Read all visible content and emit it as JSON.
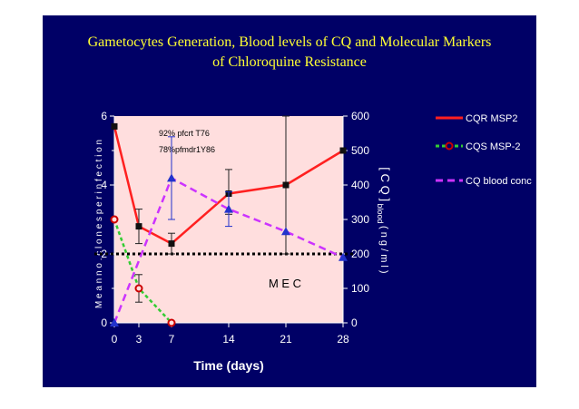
{
  "chart_data": {
    "type": "line",
    "title_line1": "Gametocytes  Generation, Blood levels of CQ and Molecular Markers",
    "title_line2": "of Chloroquine Resistance",
    "xlabel": "Time (days)",
    "ylabel_left": "M e a n  n o .  c l o n e s  p e r  i n f e c t i o n",
    "ylabel_right_main": "[ C Q ]",
    "ylabel_right_sub": "blood",
    "ylabel_right_unit": "( n g / m l )",
    "x_ticks": [
      0,
      3,
      7,
      14,
      21,
      28
    ],
    "xlim": [
      0,
      28
    ],
    "ylim_left": [
      0,
      6
    ],
    "y_ticks_left": [
      0,
      2,
      4,
      6
    ],
    "ylim_right": [
      0,
      600
    ],
    "y_ticks_right": [
      0,
      100,
      200,
      300,
      400,
      500,
      600
    ],
    "series": [
      {
        "name": "CQR MSP2",
        "color": "#ff2020",
        "axis": "left",
        "marker": "square",
        "x": [
          0,
          3,
          7,
          14,
          21,
          28
        ],
        "y": [
          5.7,
          2.8,
          2.3,
          3.75,
          4.0,
          5.0
        ],
        "err_low": [
          0,
          0.5,
          0.3,
          0.6,
          2.0,
          0
        ],
        "err_high": [
          0,
          0.5,
          0.3,
          0.7,
          2.0,
          0
        ]
      },
      {
        "name": "CQS MSP-2",
        "color": "#33cc33",
        "axis": "left",
        "marker": "circle",
        "x": [
          0,
          3,
          7
        ],
        "y": [
          3.0,
          1.0,
          0.0
        ],
        "err_low": [
          0,
          0.4,
          0
        ],
        "err_high": [
          0,
          0.4,
          0
        ]
      },
      {
        "name": "CQ blood conc",
        "color": "#cc33ff",
        "axis": "right",
        "marker": "triangle",
        "marker_color": "#2233cc",
        "x": [
          0,
          7,
          14,
          21,
          28
        ],
        "y": [
          0,
          420,
          330,
          265,
          190
        ],
        "err_low": [
          0,
          120,
          50,
          0,
          0
        ],
        "err_high": [
          0,
          120,
          50,
          0,
          0
        ]
      }
    ],
    "mec": {
      "label": "M E C",
      "value_left": 2.0
    },
    "annotation_line1": "92% pfcrt T76",
    "annotation_line2": "78%pfmdr1Y86"
  }
}
